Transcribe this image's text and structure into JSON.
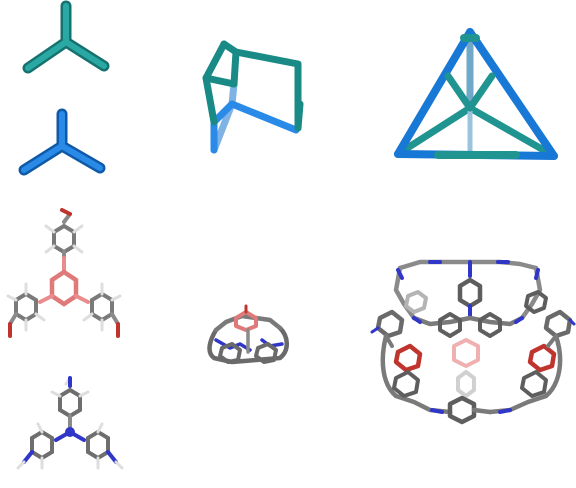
{
  "colors": {
    "teal": "#1f9490",
    "teal_dark": "#166e6b",
    "blue": "#1778d6",
    "blue_dark": "#0f5aa6",
    "carbon": "#8a8a8a",
    "carbon_dark": "#5e5e5e",
    "boron": "#e98c8c",
    "oxygen": "#c0342e",
    "nitrogen": "#2f36c8",
    "hydrogen": "#e2e2e2"
  },
  "panels": [
    {
      "name": "tritopic-node-teal",
      "shape": "3-connected-node",
      "color": "teal"
    },
    {
      "name": "tritopic-node-blue",
      "shape": "3-connected-node",
      "color": "blue"
    },
    {
      "name": "bicapped-cage-topology",
      "shape": "cage-2+3",
      "color": "teal-blue"
    },
    {
      "name": "tetrahedral-cage-topology",
      "shape": "tetrahedron",
      "color": "teal-blue"
    },
    {
      "name": "boroxine-trialdehyde-molecule",
      "shape": "stick-model"
    },
    {
      "name": "triamine-molecule",
      "shape": "stick-model"
    },
    {
      "name": "small-cage-molecule",
      "shape": "stick-model"
    },
    {
      "name": "large-cage-molecule",
      "shape": "stick-model"
    }
  ]
}
